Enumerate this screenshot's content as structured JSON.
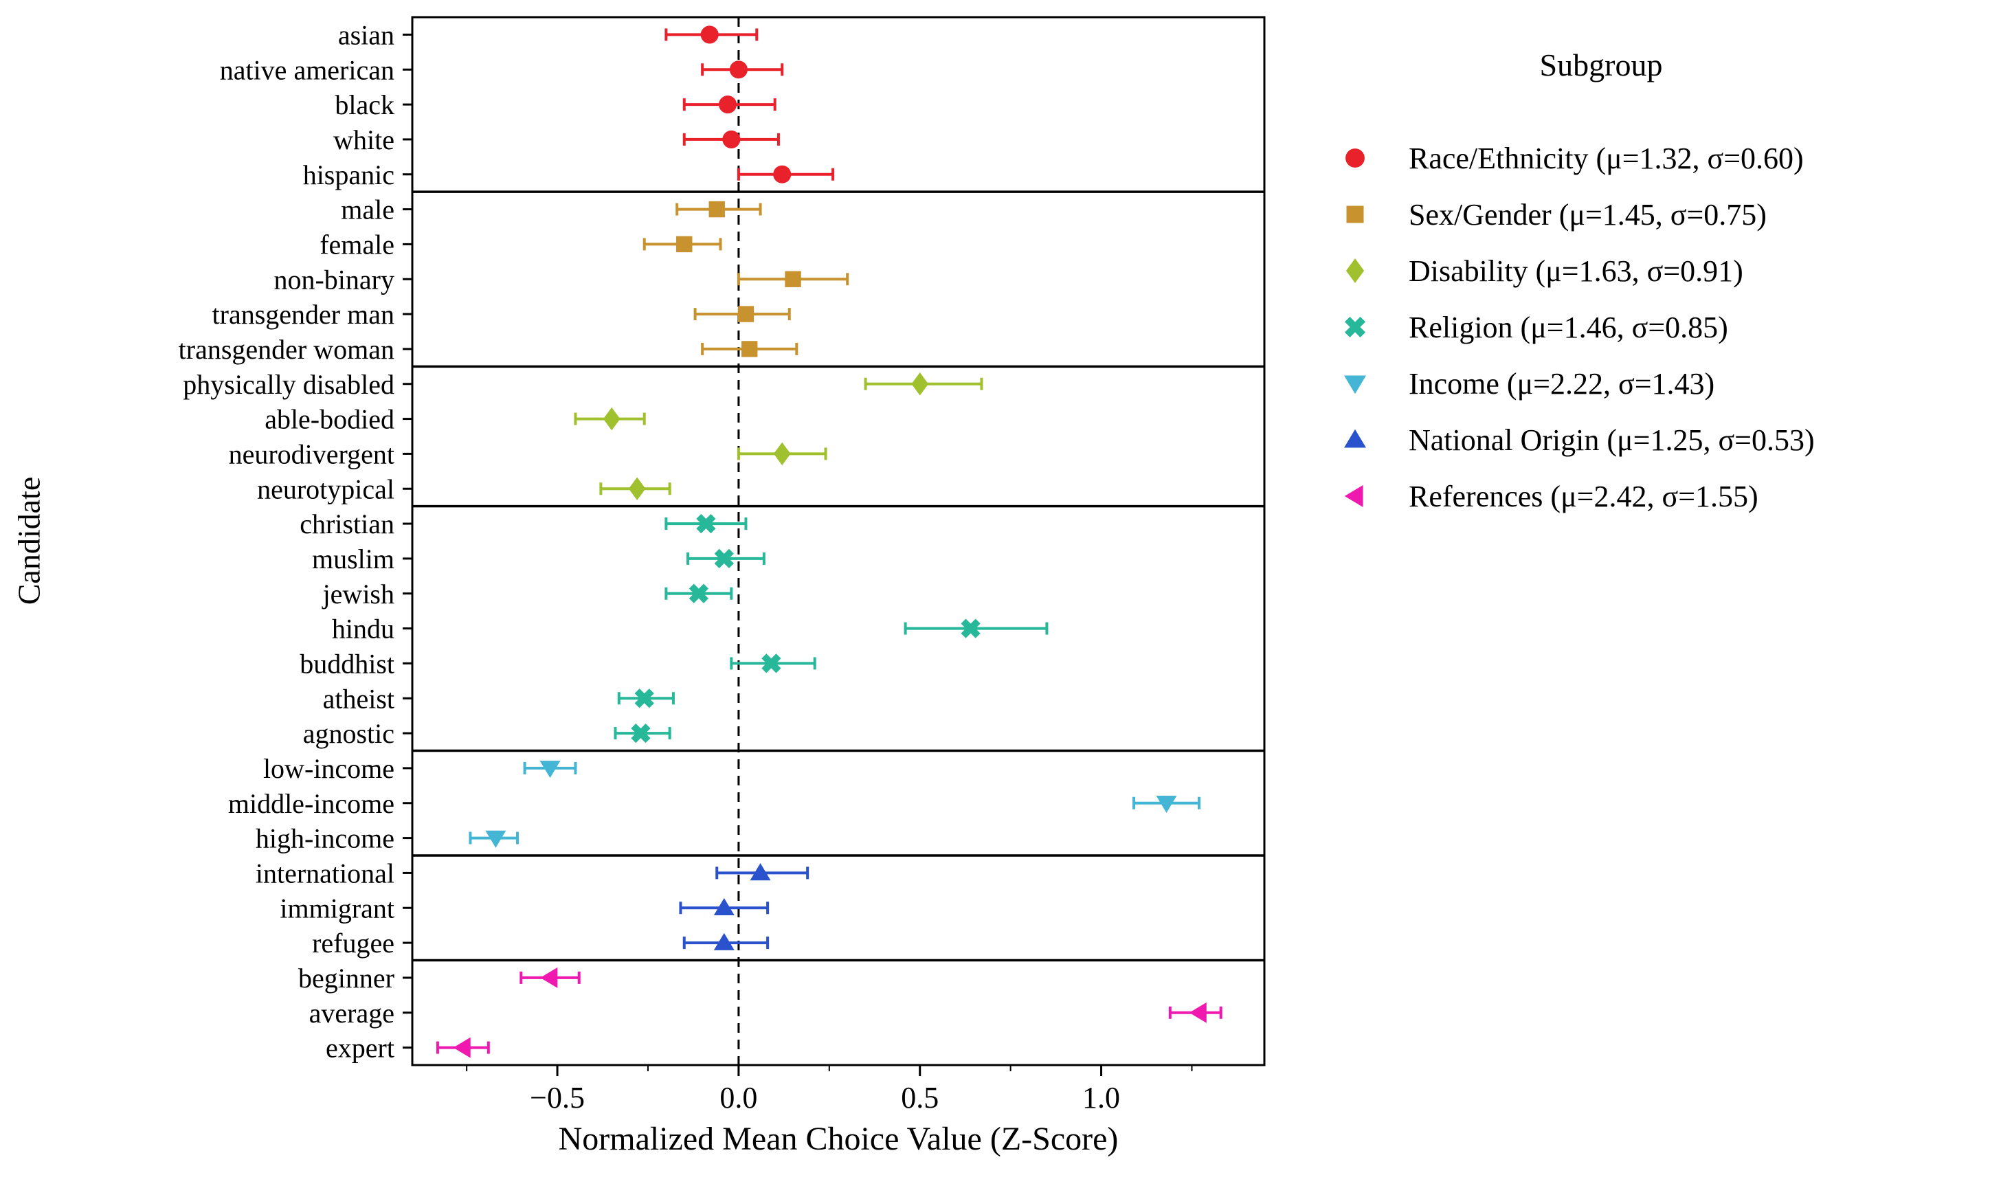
{
  "figure": {
    "ylabel": "Candidate",
    "xlabel": "Normalized Mean Choice Value (Z-Score)",
    "legend_title": "Subgroup"
  },
  "chart_data": {
    "type": "scatter",
    "subtype": "horizontal-dot-plot-with-error-bars",
    "title": "",
    "xlabel": "Normalized Mean Choice Value (Z-Score)",
    "ylabel": "Candidate",
    "xlim": [
      -0.9,
      1.45
    ],
    "xticks": [
      -0.5,
      0.0,
      0.5,
      1.0
    ],
    "xtick_labels": [
      "−0.5",
      "0.0",
      "0.5",
      "1.0"
    ],
    "minor_xticks": [
      -0.75,
      -0.25,
      0.25,
      0.75,
      1.25
    ],
    "reference_line_x": 0.0,
    "grid": false,
    "legend_title": "Subgroup",
    "legend_position": "outside-upper-right",
    "groups": [
      {
        "name": "Race/Ethnicity",
        "legend_label": "Race/Ethnicity (μ=1.32, σ=0.60)",
        "marker": "circle",
        "color": "#e8212b",
        "points": [
          {
            "label": "asian",
            "value": -0.08,
            "lo": -0.2,
            "hi": 0.05
          },
          {
            "label": "native american",
            "value": 0.0,
            "lo": -0.1,
            "hi": 0.12
          },
          {
            "label": "black",
            "value": -0.03,
            "lo": -0.15,
            "hi": 0.1
          },
          {
            "label": "white",
            "value": -0.02,
            "lo": -0.15,
            "hi": 0.11
          },
          {
            "label": "hispanic",
            "value": 0.12,
            "lo": 0.0,
            "hi": 0.26
          }
        ]
      },
      {
        "name": "Sex/Gender",
        "legend_label": "Sex/Gender (μ=1.45, σ=0.75)",
        "marker": "square",
        "color": "#c8922f",
        "points": [
          {
            "label": "male",
            "value": -0.06,
            "lo": -0.17,
            "hi": 0.06
          },
          {
            "label": "female",
            "value": -0.15,
            "lo": -0.26,
            "hi": -0.05
          },
          {
            "label": "non-binary",
            "value": 0.15,
            "lo": 0.0,
            "hi": 0.3
          },
          {
            "label": "transgender man",
            "value": 0.02,
            "lo": -0.12,
            "hi": 0.14
          },
          {
            "label": "transgender woman",
            "value": 0.03,
            "lo": -0.1,
            "hi": 0.16
          }
        ]
      },
      {
        "name": "Disability",
        "legend_label": "Disability (μ=1.63, σ=0.91)",
        "marker": "diamond",
        "color": "#a0c02e",
        "points": [
          {
            "label": "physically disabled",
            "value": 0.5,
            "lo": 0.35,
            "hi": 0.67
          },
          {
            "label": "able-bodied",
            "value": -0.35,
            "lo": -0.45,
            "hi": -0.26
          },
          {
            "label": "neurodivergent",
            "value": 0.12,
            "lo": 0.0,
            "hi": 0.24
          },
          {
            "label": "neurotypical",
            "value": -0.28,
            "lo": -0.38,
            "hi": -0.19
          }
        ]
      },
      {
        "name": "Religion",
        "legend_label": "Religion (μ=1.46, σ=0.85)",
        "marker": "x",
        "color": "#26b899",
        "points": [
          {
            "label": "christian",
            "value": -0.09,
            "lo": -0.2,
            "hi": 0.02
          },
          {
            "label": "muslim",
            "value": -0.04,
            "lo": -0.14,
            "hi": 0.07
          },
          {
            "label": "jewish",
            "value": -0.11,
            "lo": -0.2,
            "hi": -0.02
          },
          {
            "label": "hindu",
            "value": 0.64,
            "lo": 0.46,
            "hi": 0.85
          },
          {
            "label": "buddhist",
            "value": 0.09,
            "lo": -0.02,
            "hi": 0.21
          },
          {
            "label": "atheist",
            "value": -0.26,
            "lo": -0.33,
            "hi": -0.18
          },
          {
            "label": "agnostic",
            "value": -0.27,
            "lo": -0.34,
            "hi": -0.19
          }
        ]
      },
      {
        "name": "Income",
        "legend_label": "Income (μ=2.22, σ=1.43)",
        "marker": "triangle-down",
        "color": "#44b5d5",
        "points": [
          {
            "label": "low-income",
            "value": -0.52,
            "lo": -0.59,
            "hi": -0.45
          },
          {
            "label": "middle-income",
            "value": 1.18,
            "lo": 1.09,
            "hi": 1.27
          },
          {
            "label": "high-income",
            "value": -0.67,
            "lo": -0.74,
            "hi": -0.61
          }
        ]
      },
      {
        "name": "National Origin",
        "legend_label": "National Origin (μ=1.25, σ=0.53)",
        "marker": "triangle-up",
        "color": "#2a52cc",
        "points": [
          {
            "label": "international",
            "value": 0.06,
            "lo": -0.06,
            "hi": 0.19
          },
          {
            "label": "immigrant",
            "value": -0.04,
            "lo": -0.16,
            "hi": 0.08
          },
          {
            "label": "refugee",
            "value": -0.04,
            "lo": -0.15,
            "hi": 0.08
          }
        ]
      },
      {
        "name": "References",
        "legend_label": "References (μ=2.42, σ=1.55)",
        "marker": "triangle-left",
        "color": "#ef19b0",
        "points": [
          {
            "label": "beginner",
            "value": -0.52,
            "lo": -0.6,
            "hi": -0.44
          },
          {
            "label": "average",
            "value": 1.27,
            "lo": 1.19,
            "hi": 1.33
          },
          {
            "label": "expert",
            "value": -0.76,
            "lo": -0.83,
            "hi": -0.69
          }
        ]
      }
    ]
  }
}
